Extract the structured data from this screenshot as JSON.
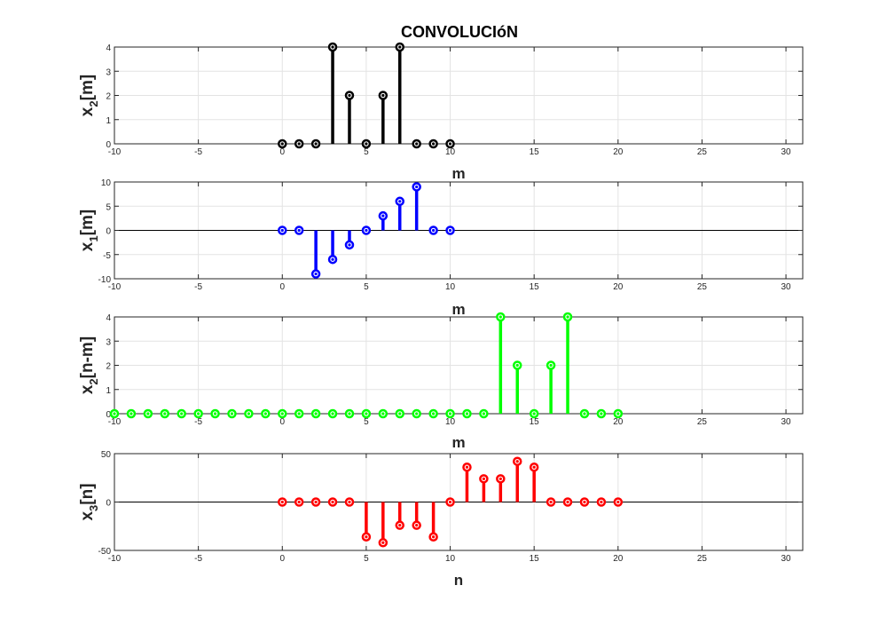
{
  "chart_data": [
    {
      "type": "stem",
      "title": "CONVOLUCIóN",
      "ylabel_main": "x",
      "ylabel_sub": "2",
      "ylabel_rest": "[m]",
      "xlabel": "m",
      "xlim": [
        -10,
        31
      ],
      "ylim": [
        0,
        4
      ],
      "xticks": [
        -10,
        -5,
        0,
        5,
        10,
        15,
        20,
        25,
        30
      ],
      "yticks": [
        0,
        1,
        2,
        3,
        4
      ],
      "grid": true,
      "color": "#000000",
      "x": [
        0,
        1,
        2,
        3,
        4,
        5,
        6,
        7,
        8,
        9,
        10
      ],
      "y": [
        0,
        0,
        0,
        4,
        2,
        0,
        2,
        4,
        0,
        0,
        0
      ]
    },
    {
      "type": "stem",
      "title": "",
      "ylabel_main": "x",
      "ylabel_sub": "1",
      "ylabel_rest": "[m]",
      "xlabel": "m",
      "xlim": [
        -10,
        31
      ],
      "ylim": [
        -10,
        10
      ],
      "xticks": [
        -10,
        -5,
        0,
        5,
        10,
        15,
        20,
        25,
        30
      ],
      "yticks": [
        -10,
        -5,
        0,
        5,
        10
      ],
      "grid": true,
      "color": "#0000ff",
      "x": [
        0,
        1,
        2,
        3,
        4,
        5,
        6,
        7,
        8,
        9,
        10
      ],
      "y": [
        0,
        0,
        -9,
        -6,
        -3,
        0,
        3,
        6,
        9,
        0,
        0
      ]
    },
    {
      "type": "stem",
      "title": "",
      "ylabel_main": "x",
      "ylabel_sub": "2",
      "ylabel_rest": "[n-m]",
      "xlabel": "m",
      "xlim": [
        -10,
        31
      ],
      "ylim": [
        0,
        4
      ],
      "xticks": [
        -10,
        -5,
        0,
        5,
        10,
        15,
        20,
        25,
        30
      ],
      "yticks": [
        0,
        1,
        2,
        3,
        4
      ],
      "grid": true,
      "color": "#00ff00",
      "x": [
        -10,
        -9,
        -8,
        -7,
        -6,
        -5,
        -4,
        -3,
        -2,
        -1,
        0,
        1,
        2,
        3,
        4,
        5,
        6,
        7,
        8,
        9,
        10,
        11,
        12,
        13,
        14,
        15,
        16,
        17,
        18,
        19,
        20
      ],
      "y": [
        0,
        0,
        0,
        0,
        0,
        0,
        0,
        0,
        0,
        0,
        0,
        0,
        0,
        0,
        0,
        0,
        0,
        0,
        0,
        0,
        0,
        0,
        0,
        4,
        2,
        0,
        2,
        4,
        0,
        0,
        0
      ]
    },
    {
      "type": "stem",
      "title": "",
      "ylabel_main": "x",
      "ylabel_sub": "3",
      "ylabel_rest": "[n]",
      "xlabel": "n",
      "xlim": [
        -10,
        31
      ],
      "ylim": [
        -50,
        50
      ],
      "xticks": [
        -10,
        -5,
        0,
        5,
        10,
        15,
        20,
        25,
        30
      ],
      "yticks": [
        -50,
        0,
        50
      ],
      "grid": true,
      "color": "#ff0000",
      "x": [
        0,
        1,
        2,
        3,
        4,
        5,
        6,
        7,
        8,
        9,
        10,
        11,
        12,
        13,
        14,
        15,
        16,
        17,
        18,
        19,
        20
      ],
      "y": [
        0,
        0,
        0,
        0,
        0,
        -36,
        -42,
        -24,
        -24,
        -36,
        0,
        36,
        24,
        24,
        42,
        36,
        0,
        0,
        0,
        0,
        0
      ]
    }
  ]
}
